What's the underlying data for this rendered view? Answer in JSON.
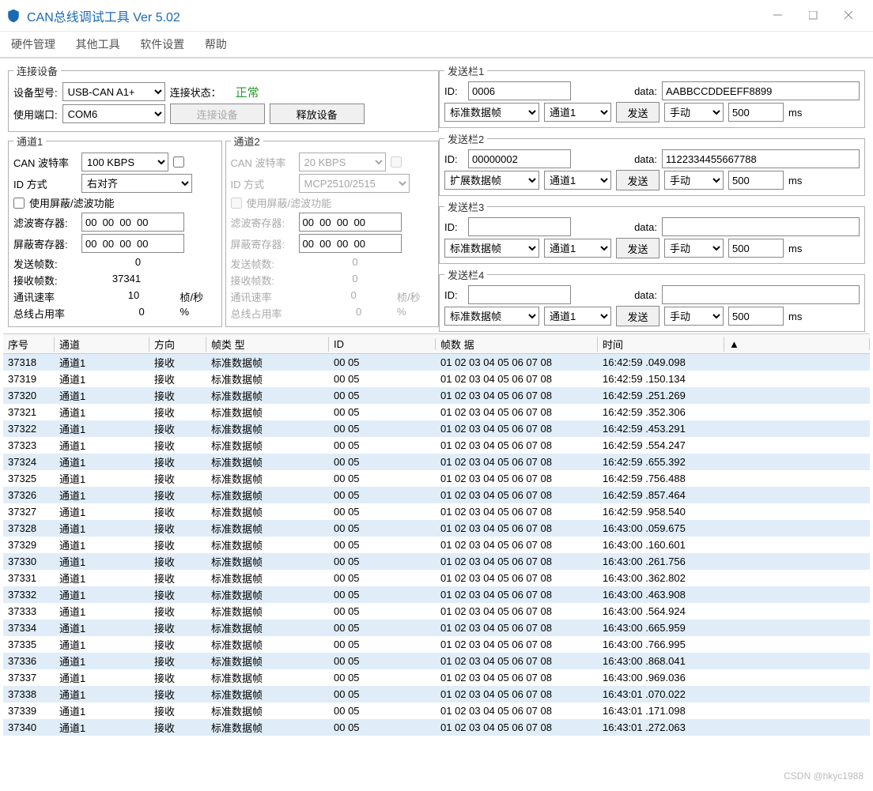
{
  "titlebar": {
    "title": "CAN总线调试工具 Ver 5.02"
  },
  "menu": {
    "items": [
      "硬件管理",
      "其他工具",
      "软件设置",
      "帮助"
    ]
  },
  "connect": {
    "legend": "连接设备",
    "device_model_lbl": "设备型号:",
    "device_model": "USB-CAN A1+",
    "port_lbl": "使用端口:",
    "port": "COM6",
    "status_lbl": "连接状态：",
    "status_value": "正常",
    "btn_connect": "连接设备",
    "btn_release": "释放设备"
  },
  "ch1": {
    "legend": "通道1",
    "baud_lbl": "CAN 波特率",
    "baud": "100 KBPS",
    "idmode_lbl": "ID 方式",
    "idmode": "右对齐",
    "mask_chk_lbl": "使用屏蔽/滤波功能",
    "mask_checked": false,
    "filter_lbl": "滤波寄存器:",
    "filter": "00  00  00  00",
    "mask_lbl": "屏蔽寄存器:",
    "mask": "00  00  00  00",
    "stats": {
      "tx_lbl": "发送帧数:",
      "tx": "0",
      "rx_lbl": "接收帧数:",
      "rx": "37341",
      "rate_lbl": "通讯速率",
      "rate": "10",
      "rate_unit": "桢/秒",
      "bus_lbl": "总线占用率",
      "bus": "0",
      "bus_unit": "%"
    }
  },
  "ch2": {
    "legend": "通道2",
    "baud_lbl": "CAN 波特率",
    "baud": "20 KBPS",
    "idmode_lbl": "ID 方式",
    "idmode": "MCP2510/2515",
    "mask_chk_lbl": "使用屏蔽/滤波功能",
    "filter_lbl": "滤波寄存器:",
    "filter": "00  00  00  00",
    "mask_lbl": "屏蔽寄存器:",
    "mask": "00  00  00  00",
    "stats": {
      "tx_lbl": "发送帧数:",
      "tx": "0",
      "rx_lbl": "接收帧数:",
      "rx": "0",
      "rate_lbl": "通讯速率",
      "rate": "0",
      "rate_unit": "桢/秒",
      "bus_lbl": "总线占用率",
      "bus": "0",
      "bus_unit": "%"
    }
  },
  "send_common": {
    "id_lbl": "ID:",
    "data_lbl": "data:",
    "ms_lbl": "ms",
    "btn_send": "发送",
    "channel_opt": "通道1",
    "mode_opt": "手动",
    "ft_std": "标准数据帧",
    "ft_ext": "扩展数据帧"
  },
  "send": [
    {
      "legend": "发送栏1",
      "id": "0006",
      "data": "AABBCCDDEEFF8899",
      "ft": "标准数据帧",
      "interval": "500"
    },
    {
      "legend": "发送栏2",
      "id": "00000002",
      "data": "1122334455667788",
      "ft": "扩展数据帧",
      "interval": "500"
    },
    {
      "legend": "发送栏3",
      "id": "",
      "data": "",
      "ft": "标准数据帧",
      "interval": "500"
    },
    {
      "legend": "发送栏4",
      "id": "",
      "data": "",
      "ft": "标准数据帧",
      "interval": "500"
    }
  ],
  "grid": {
    "headers": {
      "seq": "序号",
      "ch": "通道",
      "dir": "方向",
      "ft": "帧类 型",
      "id": "ID",
      "data": "帧数 据",
      "time": "时间"
    },
    "row_template": {
      "ch": "通道1",
      "dir": "接收",
      "ft": "标准数据帧",
      "id": "00 05",
      "data": "01 02 03 04 05 06 07 08"
    },
    "rows": [
      {
        "seq": "37318",
        "time": "16:42:59 .049.098"
      },
      {
        "seq": "37319",
        "time": "16:42:59 .150.134"
      },
      {
        "seq": "37320",
        "time": "16:42:59 .251.269"
      },
      {
        "seq": "37321",
        "time": "16:42:59 .352.306"
      },
      {
        "seq": "37322",
        "time": "16:42:59 .453.291"
      },
      {
        "seq": "37323",
        "time": "16:42:59 .554.247"
      },
      {
        "seq": "37324",
        "time": "16:42:59 .655.392"
      },
      {
        "seq": "37325",
        "time": "16:42:59 .756.488"
      },
      {
        "seq": "37326",
        "time": "16:42:59 .857.464"
      },
      {
        "seq": "37327",
        "time": "16:42:59 .958.540"
      },
      {
        "seq": "37328",
        "time": "16:43:00 .059.675"
      },
      {
        "seq": "37329",
        "time": "16:43:00 .160.601"
      },
      {
        "seq": "37330",
        "time": "16:43:00 .261.756"
      },
      {
        "seq": "37331",
        "time": "16:43:00 .362.802"
      },
      {
        "seq": "37332",
        "time": "16:43:00 .463.908"
      },
      {
        "seq": "37333",
        "time": "16:43:00 .564.924"
      },
      {
        "seq": "37334",
        "time": "16:43:00 .665.959"
      },
      {
        "seq": "37335",
        "time": "16:43:00 .766.995"
      },
      {
        "seq": "37336",
        "time": "16:43:00 .868.041"
      },
      {
        "seq": "37337",
        "time": "16:43:00 .969.036"
      },
      {
        "seq": "37338",
        "time": "16:43:01 .070.022"
      },
      {
        "seq": "37339",
        "time": "16:43:01 .171.098"
      },
      {
        "seq": "37340",
        "time": "16:43:01 .272.063"
      }
    ]
  },
  "watermark": "CSDN @hkyc1988"
}
